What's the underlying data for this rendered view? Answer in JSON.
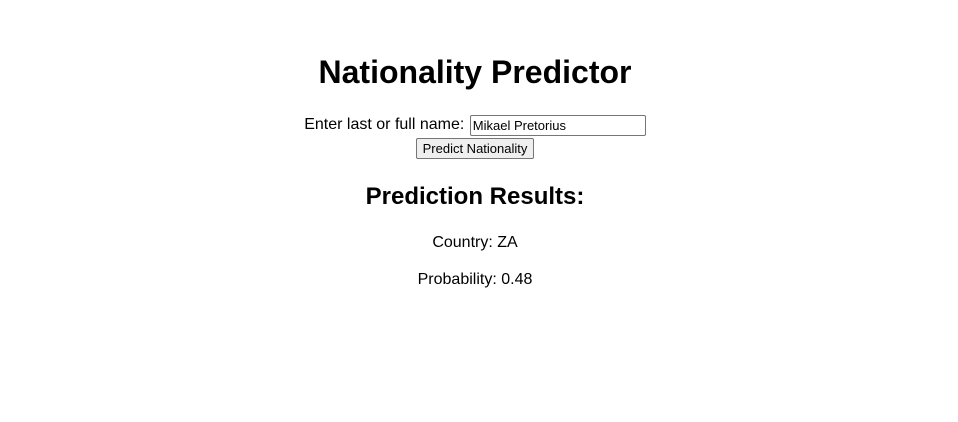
{
  "header": {
    "title": "Nationality Predictor"
  },
  "form": {
    "label": "Enter last or full name:",
    "name_value": "Mikael Pretorius",
    "submit_label": "Predict Nationality"
  },
  "results": {
    "heading": "Prediction Results:",
    "country_label": "Country:",
    "country_value": "ZA",
    "probability_label": "Probability:",
    "probability_value": "0.48"
  }
}
